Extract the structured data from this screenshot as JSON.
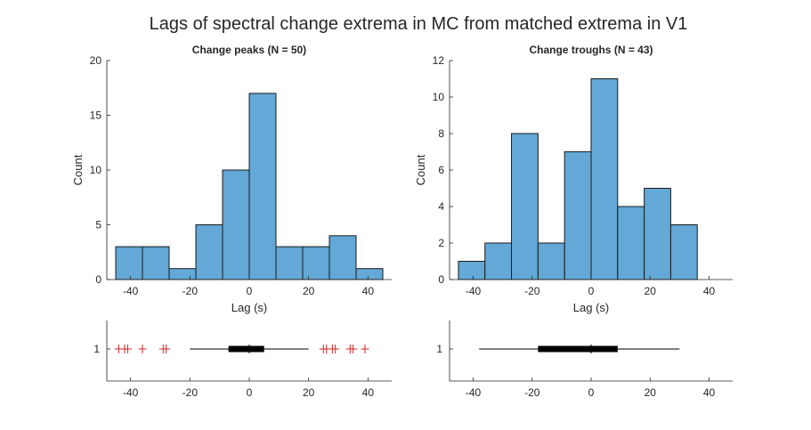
{
  "figure": {
    "title": "Lags of spectral change extrema in MC from matched extrema in V1"
  },
  "colors": {
    "bar_fill": "#63a8d6",
    "bar_edge": "#1a1a1a",
    "outlier": "#d62222",
    "box": "#000000"
  },
  "chart_data": [
    {
      "type": "bar",
      "title": "Change peaks (N = 50)",
      "xlabel": "Lag (s)",
      "ylabel": "Count",
      "xlim": [
        -48,
        48
      ],
      "ylim": [
        0,
        20
      ],
      "xticks": [
        -40,
        -20,
        0,
        20,
        40
      ],
      "yticks": [
        0,
        5,
        10,
        15,
        20
      ],
      "bin_edges": [
        -45,
        -36,
        -27,
        -18,
        -9,
        0,
        9,
        18,
        27,
        36,
        45
      ],
      "values": [
        3,
        3,
        1,
        5,
        10,
        17,
        3,
        3,
        4,
        1
      ],
      "grid": false,
      "boxplot": {
        "ytick": "1",
        "whisker_low": -20,
        "q1": -7,
        "median": 0,
        "q3": 5,
        "whisker_high": 20,
        "outliers": [
          -44,
          -42,
          -41,
          -36,
          -29,
          -28,
          25,
          26,
          28,
          29,
          34,
          35,
          39
        ]
      }
    },
    {
      "type": "bar",
      "title": "Change troughs (N = 43)",
      "xlabel": "Lag (s)",
      "ylabel": "Count",
      "xlim": [
        -48,
        48
      ],
      "ylim": [
        0,
        12
      ],
      "xticks": [
        -40,
        -20,
        0,
        20,
        40
      ],
      "yticks": [
        0,
        2,
        4,
        6,
        8,
        10,
        12
      ],
      "bin_edges": [
        -45,
        -36,
        -27,
        -18,
        -9,
        0,
        9,
        18,
        27,
        36
      ],
      "values": [
        1,
        2,
        8,
        2,
        7,
        11,
        4,
        5,
        3
      ],
      "grid": false,
      "boxplot": {
        "ytick": "1",
        "whisker_low": -38,
        "q1": -18,
        "median": 0,
        "q3": 9,
        "whisker_high": 30,
        "outliers": []
      }
    }
  ]
}
